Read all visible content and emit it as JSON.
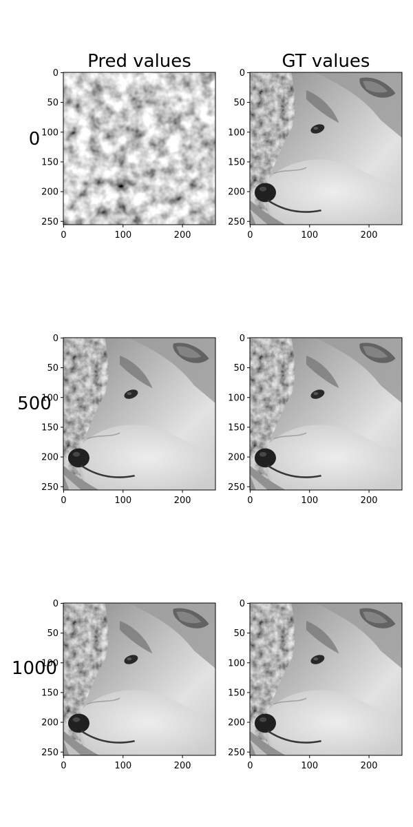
{
  "chart_data": {
    "type": "image-grid",
    "column_titles": [
      "Pred values",
      "GT values"
    ],
    "row_labels": [
      "0",
      "500",
      "1000"
    ],
    "x_ticks": [
      "0",
      "100",
      "200"
    ],
    "y_ticks": [
      "0",
      "50",
      "100",
      "150",
      "200",
      "250"
    ],
    "xlim": [
      0,
      255
    ],
    "ylim": [
      255,
      0
    ],
    "panels": [
      {
        "row": "0",
        "column": "Pred values",
        "content": "noise"
      },
      {
        "row": "0",
        "column": "GT values",
        "content": "wolf"
      },
      {
        "row": "500",
        "column": "Pred values",
        "content": "wolf"
      },
      {
        "row": "500",
        "column": "GT values",
        "content": "wolf"
      },
      {
        "row": "1000",
        "column": "Pred values",
        "content": "wolf"
      },
      {
        "row": "1000",
        "column": "GT values",
        "content": "wolf"
      }
    ],
    "colormap": "gray"
  }
}
